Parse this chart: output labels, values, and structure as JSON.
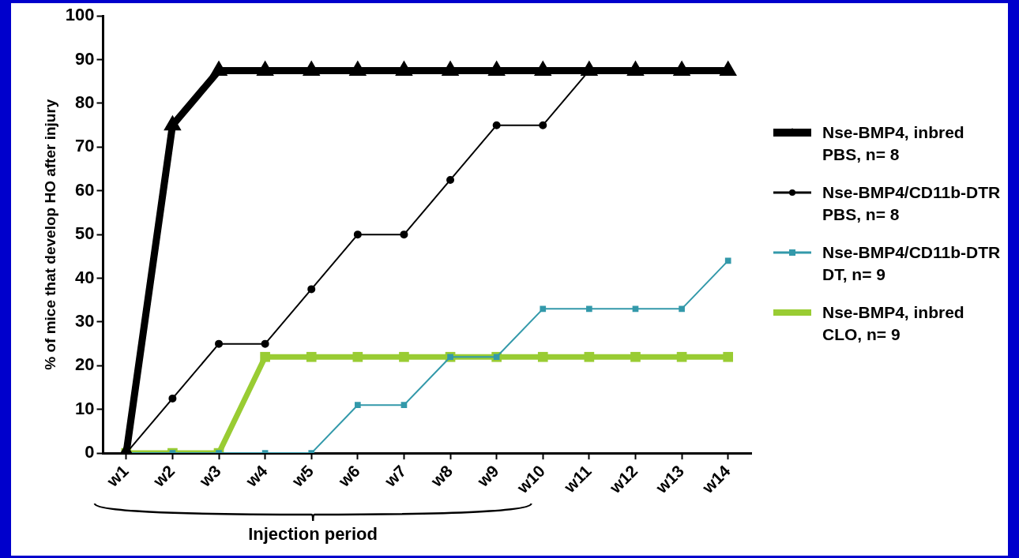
{
  "chart_data": {
    "type": "line",
    "ylabel": "% of mice that develop HO after injury",
    "categories": [
      "w1",
      "w2",
      "w3",
      "w4",
      "w5",
      "w6",
      "w7",
      "w8",
      "w9",
      "w10",
      "w11",
      "w12",
      "w13",
      "w14"
    ],
    "series": [
      {
        "name": "Nse-BMP4, inbred\nPBS, n= 8",
        "color": "#000000",
        "marker": "triangle",
        "values": [
          0,
          75,
          87.5,
          87.5,
          87.5,
          87.5,
          87.5,
          87.5,
          87.5,
          87.5,
          87.5,
          87.5,
          87.5,
          87.5
        ]
      },
      {
        "name": "Nse-BMP4/CD11b-DTR\nPBS, n= 8",
        "color": "#000000",
        "marker": "circle",
        "values": [
          0,
          12.5,
          25,
          25,
          37.5,
          50,
          50,
          62.5,
          75,
          75,
          87.5,
          87.5,
          87.5,
          87.5
        ]
      },
      {
        "name": "Nse-BMP4/CD11b-DTR\nDT, n= 9",
        "color": "#3399aa",
        "marker": "square",
        "values": [
          0,
          0,
          0,
          0,
          0,
          11,
          11,
          22,
          22,
          33,
          33,
          33,
          33,
          44
        ]
      },
      {
        "name": "Nse-BMP4, inbred\nCLO, n= 9",
        "color": "#99cc33",
        "marker": "square",
        "values": [
          0,
          0,
          0,
          22,
          22,
          22,
          22,
          22,
          22,
          22,
          22,
          22,
          22,
          22
        ]
      }
    ],
    "ylim": [
      0,
      100
    ],
    "yticks": [
      0,
      10,
      20,
      30,
      40,
      50,
      60,
      70,
      80,
      90,
      100
    ],
    "grid": false,
    "legend": "right",
    "line_style": "solid",
    "annotations": [
      "Injection period"
    ]
  }
}
